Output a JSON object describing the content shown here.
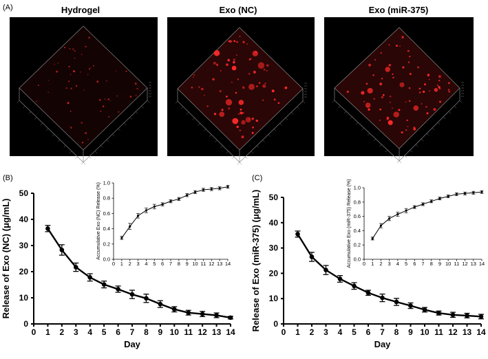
{
  "panels": {
    "a": {
      "label": "(A)",
      "images": [
        {
          "title": "Hydrogel",
          "density": "low"
        },
        {
          "title": "Exo (NC)",
          "density": "high"
        },
        {
          "title": "Exo (miR-375)",
          "density": "high"
        }
      ]
    },
    "b": {
      "label": "(B)"
    },
    "c": {
      "label": "(C)"
    }
  },
  "colors": {
    "fluorescence": "#ff2a2a",
    "background": "#000000",
    "line": "#000000"
  },
  "chart_data": [
    {
      "id": "B-main",
      "type": "line",
      "title": "",
      "xlabel": "Day",
      "ylabel": "Release of Exo (NC) (μg/mL)",
      "x": [
        1,
        2,
        3,
        4,
        5,
        6,
        7,
        8,
        9,
        10,
        11,
        12,
        13,
        14
      ],
      "values": [
        36.5,
        28.3,
        21.7,
        17.8,
        15.1,
        13.3,
        11.3,
        9.8,
        7.6,
        5.6,
        4.3,
        3.8,
        3.3,
        2.4
      ],
      "errors": [
        1.2,
        2.0,
        1.6,
        1.4,
        1.3,
        1.2,
        1.6,
        1.6,
        1.3,
        1.0,
        0.9,
        1.0,
        0.9,
        0.5
      ],
      "xlim": [
        0,
        14
      ],
      "ylim": [
        0,
        50
      ],
      "xticks": [
        "0",
        "1",
        "2",
        "3",
        "4",
        "5",
        "6",
        "7",
        "8",
        "9",
        "10",
        "11",
        "12",
        "13",
        "14"
      ],
      "yticks": [
        "0",
        "10",
        "20",
        "30",
        "40",
        "50"
      ],
      "grid": false
    },
    {
      "id": "B-inset",
      "type": "line",
      "title": "",
      "xlabel": "",
      "ylabel": "Accumulative Exo (NC) Release (%)",
      "x": [
        1,
        2,
        3,
        4,
        5,
        6,
        7,
        8,
        9,
        10,
        11,
        12,
        13,
        14
      ],
      "values": [
        0.28,
        0.43,
        0.57,
        0.64,
        0.69,
        0.72,
        0.76,
        0.79,
        0.84,
        0.88,
        0.91,
        0.92,
        0.93,
        0.95
      ],
      "errors": [
        0.02,
        0.04,
        0.03,
        0.03,
        0.03,
        0.02,
        0.02,
        0.02,
        0.02,
        0.02,
        0.02,
        0.02,
        0.02,
        0.02
      ],
      "xlim": [
        0,
        14
      ],
      "ylim": [
        0,
        1.0
      ],
      "xticks": [
        "0",
        "1",
        "2",
        "3",
        "4",
        "5",
        "6",
        "7",
        "8",
        "9",
        "10",
        "11",
        "12",
        "13",
        "14"
      ],
      "yticks": [
        "0.0",
        "0.2",
        "0.4",
        "0.6",
        "0.8",
        "1.0"
      ],
      "grid": false
    },
    {
      "id": "C-main",
      "type": "line",
      "title": "",
      "xlabel": "Day",
      "ylabel": "Release of Exo (miR-375) (μg/mL)",
      "x": [
        1,
        2,
        3,
        4,
        5,
        6,
        7,
        8,
        9,
        10,
        11,
        12,
        13,
        14
      ],
      "values": [
        35.5,
        26.5,
        21.3,
        17.8,
        15.0,
        12.3,
        10.3,
        8.7,
        7.2,
        5.6,
        4.3,
        3.6,
        3.3,
        2.9
      ],
      "errors": [
        1.2,
        1.8,
        1.8,
        1.3,
        1.3,
        1.0,
        1.5,
        1.4,
        1.1,
        0.9,
        0.8,
        1.0,
        0.9,
        0.9
      ],
      "xlim": [
        0,
        14
      ],
      "ylim": [
        0,
        50
      ],
      "xticks": [
        "0",
        "1",
        "2",
        "3",
        "4",
        "5",
        "6",
        "7",
        "8",
        "9",
        "10",
        "11",
        "12",
        "13",
        "14"
      ],
      "yticks": [
        "0",
        "10",
        "20",
        "30",
        "40",
        "50"
      ],
      "grid": false
    },
    {
      "id": "C-inset",
      "type": "line",
      "title": "",
      "xlabel": "",
      "ylabel": "Accumulative Exo (miR-375) Release (%)",
      "x": [
        1,
        2,
        3,
        4,
        5,
        6,
        7,
        8,
        9,
        10,
        11,
        12,
        13,
        14
      ],
      "values": [
        0.29,
        0.47,
        0.57,
        0.63,
        0.68,
        0.73,
        0.77,
        0.81,
        0.85,
        0.88,
        0.91,
        0.92,
        0.93,
        0.94
      ],
      "errors": [
        0.02,
        0.03,
        0.03,
        0.03,
        0.03,
        0.02,
        0.02,
        0.02,
        0.02,
        0.02,
        0.02,
        0.02,
        0.02,
        0.02
      ],
      "xlim": [
        0,
        14
      ],
      "ylim": [
        0,
        1.0
      ],
      "xticks": [
        "0",
        "1",
        "2",
        "3",
        "4",
        "5",
        "6",
        "7",
        "8",
        "9",
        "10",
        "11",
        "12",
        "13",
        "14"
      ],
      "yticks": [
        "0.0",
        "0.2",
        "0.4",
        "0.6",
        "0.8",
        "1.0"
      ],
      "grid": false
    }
  ]
}
